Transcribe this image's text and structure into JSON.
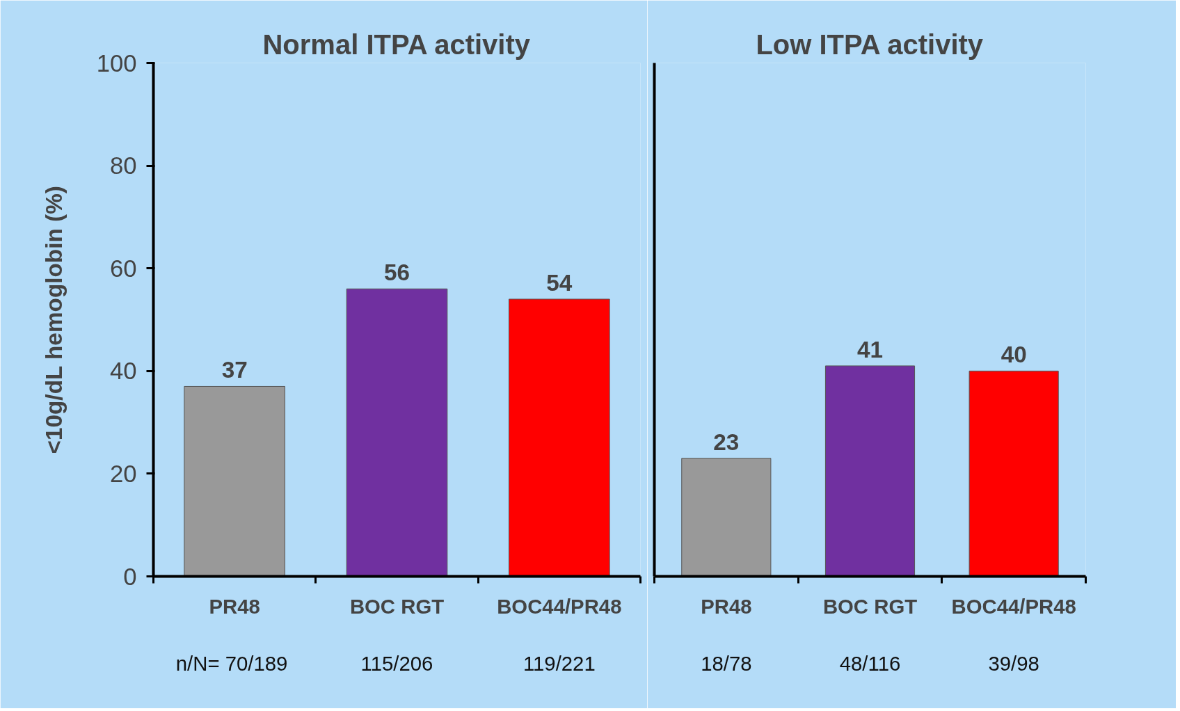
{
  "chart_data": [
    {
      "type": "bar",
      "title": "Normal ITPA activity",
      "ylabel": "<10g/dL hemoglobin (%)",
      "categories": [
        "PR48",
        "BOC RGT",
        "BOC44/PR48"
      ],
      "values": [
        37,
        56,
        54
      ],
      "colors": [
        "#999999",
        "#7030a0",
        "#ff0000"
      ],
      "ylim": [
        0,
        100
      ],
      "yticks": [
        0,
        20,
        40,
        60,
        80,
        100
      ],
      "data_labels": true,
      "grid": false,
      "annotations": [
        "n/N=  70/189",
        "115/206",
        "119/221"
      ]
    },
    {
      "type": "bar",
      "title": "Low ITPA activity",
      "categories": [
        "PR48",
        "BOC RGT",
        "BOC44/PR48"
      ],
      "values": [
        23,
        41,
        40
      ],
      "colors": [
        "#999999",
        "#7030a0",
        "#ff0000"
      ],
      "ylim": [
        0,
        100
      ],
      "tick_labels": "x",
      "data_labels": true,
      "grid": false,
      "annotations": [
        "18/78",
        "48/116",
        "39/98"
      ]
    }
  ]
}
